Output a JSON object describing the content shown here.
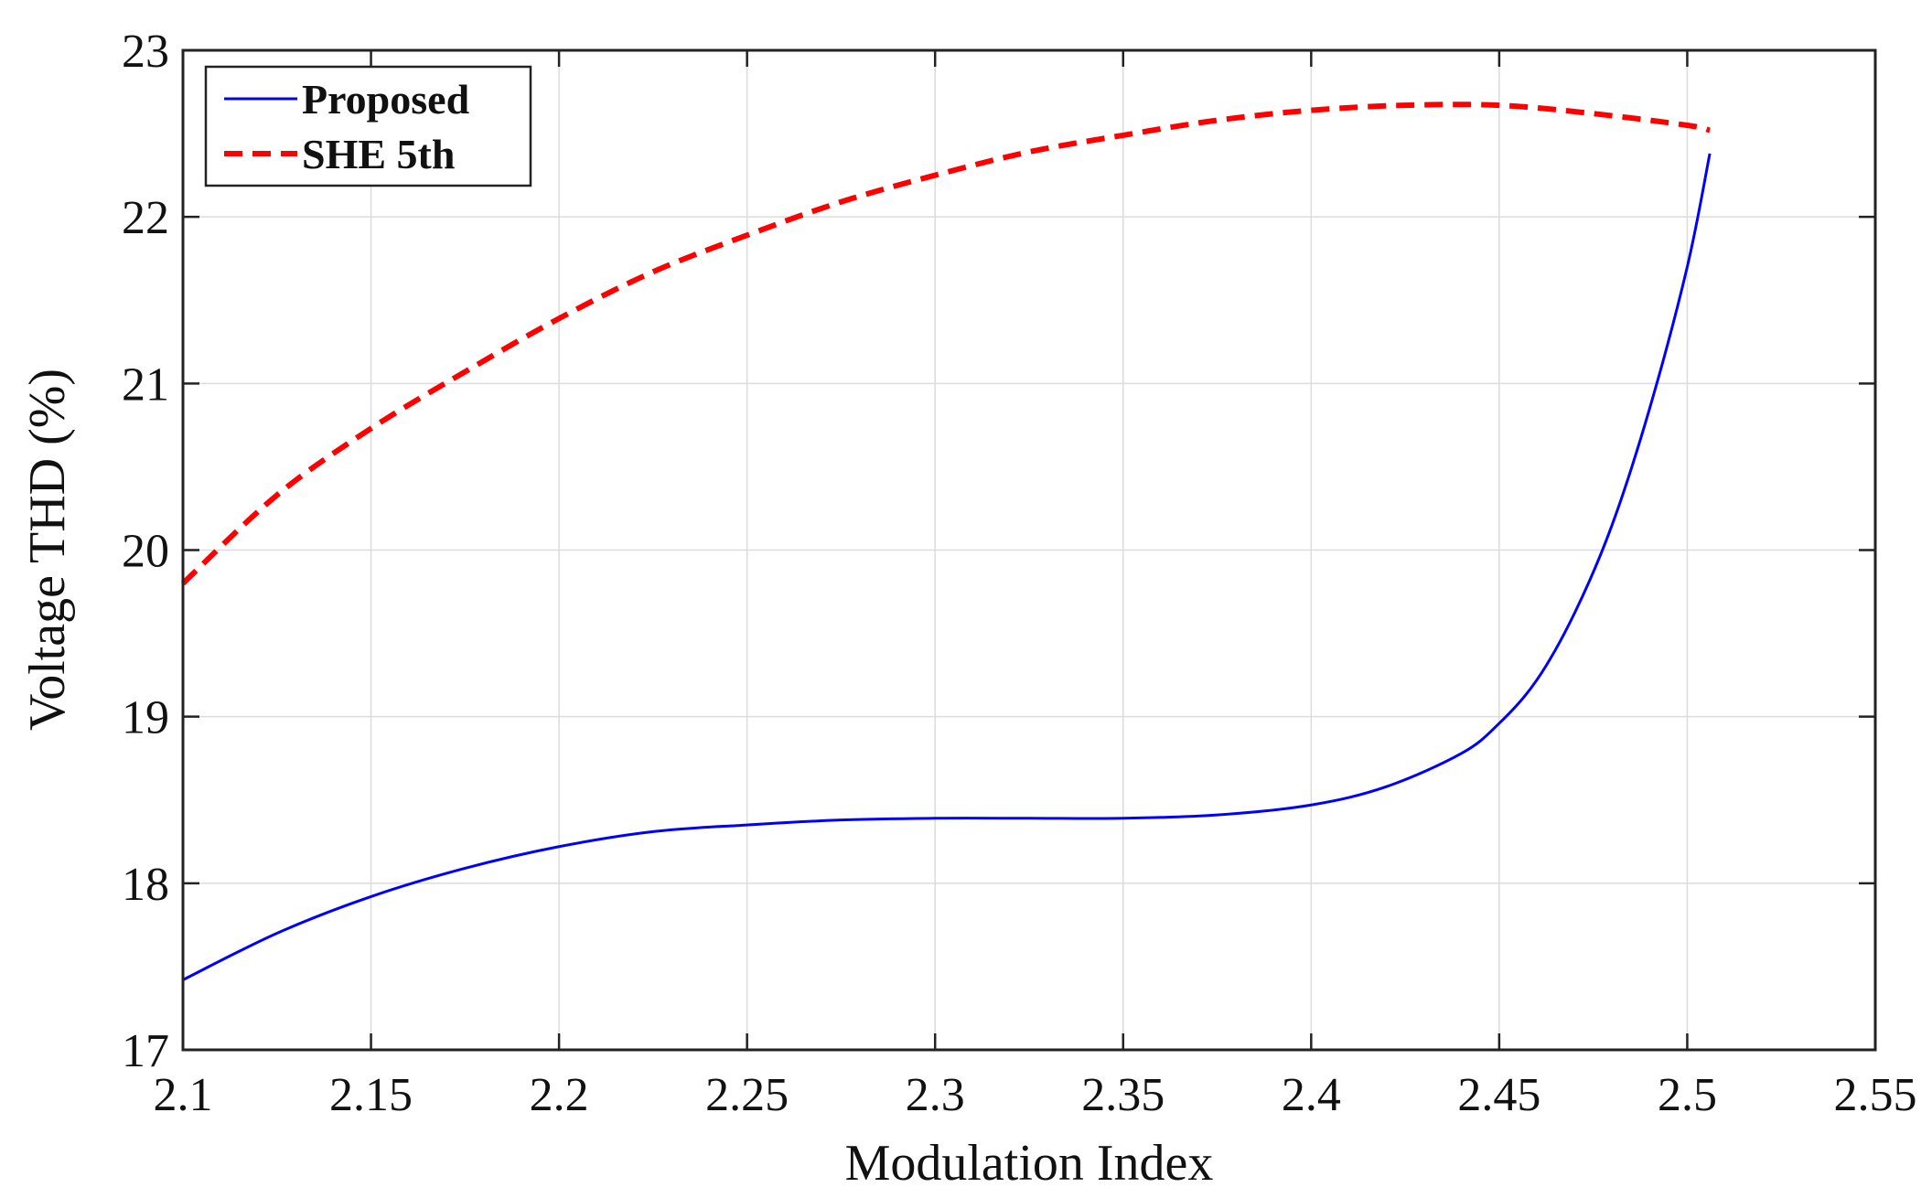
{
  "chart_data": {
    "type": "line",
    "title": "",
    "xlabel": "Modulation Index",
    "ylabel": "Voltage THD (%)",
    "xlim": [
      2.1,
      2.55
    ],
    "ylim": [
      17,
      23
    ],
    "xticks": [
      2.1,
      2.15,
      2.2,
      2.25,
      2.3,
      2.35,
      2.4,
      2.45,
      2.5,
      2.55
    ],
    "xtick_labels": [
      "2.1",
      "2.15",
      "2.2",
      "2.25",
      "2.3",
      "2.35",
      "2.4",
      "2.45",
      "2.5",
      "2.55"
    ],
    "yticks": [
      17,
      18,
      19,
      20,
      21,
      22,
      23
    ],
    "ytick_labels": [
      "17",
      "18",
      "19",
      "20",
      "21",
      "22",
      "23"
    ],
    "grid": true,
    "legend_position": "top-left",
    "series": [
      {
        "name": "Proposed",
        "color": "#0000ff",
        "style": "solid",
        "x": [
          2.1,
          2.125,
          2.15,
          2.175,
          2.2,
          2.225,
          2.25,
          2.275,
          2.3,
          2.325,
          2.35,
          2.375,
          2.4,
          2.42,
          2.44,
          2.45,
          2.46,
          2.47,
          2.48,
          2.49,
          2.5,
          2.506
        ],
        "y": [
          17.42,
          17.7,
          17.92,
          18.09,
          18.22,
          18.31,
          18.35,
          18.38,
          18.39,
          18.39,
          18.39,
          18.41,
          18.47,
          18.58,
          18.78,
          18.96,
          19.22,
          19.62,
          20.15,
          20.85,
          21.7,
          22.38
        ]
      },
      {
        "name": "SHE 5th",
        "color": "#ff0000",
        "style": "dashed",
        "x": [
          2.1,
          2.125,
          2.15,
          2.175,
          2.2,
          2.225,
          2.25,
          2.275,
          2.3,
          2.325,
          2.35,
          2.375,
          2.4,
          2.425,
          2.45,
          2.475,
          2.5,
          2.506
        ],
        "y": [
          19.8,
          20.33,
          20.73,
          21.07,
          21.39,
          21.67,
          21.89,
          22.09,
          22.25,
          22.39,
          22.49,
          22.58,
          22.64,
          22.67,
          22.67,
          22.62,
          22.55,
          22.52
        ]
      }
    ]
  }
}
